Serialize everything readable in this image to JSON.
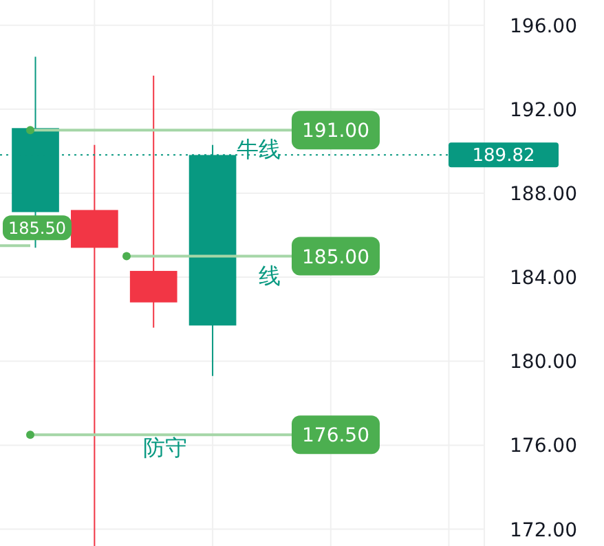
{
  "chart_data": {
    "type": "candlestick",
    "categories": [
      null,
      null,
      null,
      null,
      null,
      null,
      null,
      null
    ],
    "ohlc": [
      [
        187.1,
        194.5,
        185.4,
        191.1
      ],
      [
        187.2,
        190.3,
        171.1,
        185.4
      ],
      [
        184.3,
        193.6,
        181.6,
        182.8
      ],
      [
        181.7,
        190.3,
        179.3,
        189.82
      ],
      null,
      null,
      null,
      null
    ],
    "ylim": [
      171.2,
      197.2
    ],
    "yticks": [
      {
        "value": 172,
        "label": "172.00"
      },
      {
        "value": 176,
        "label": "176.00"
      },
      {
        "value": 180,
        "label": "180.00"
      },
      {
        "value": 184,
        "label": "184.00"
      },
      {
        "value": 188,
        "label": "188.00"
      },
      {
        "value": 192,
        "label": "192.00"
      },
      {
        "value": 196,
        "label": "196.00"
      }
    ],
    "grid": true,
    "ref_lines": [
      {
        "axis": "y",
        "value": 191,
        "label": "191.00",
        "color": "#a5d6a7",
        "line_style": "solid"
      },
      {
        "axis": "y",
        "value": 185,
        "label": "185.00",
        "color": "#a5d6a7",
        "line_style": "solid"
      },
      {
        "axis": "y",
        "value": 176.5,
        "label": "176.50",
        "color": "#a5d6a7",
        "line_style": "solid"
      },
      {
        "axis": "y",
        "value": 185.5,
        "label": "185.50",
        "color": "#a5d6a7",
        "line_style": "solid"
      },
      {
        "axis": "y",
        "value": 189.82,
        "label": "189.82",
        "color": "#089981",
        "line_style": "dotted"
      }
    ],
    "annotations": [
      "牛线",
      "线",
      "防守"
    ]
  }
}
